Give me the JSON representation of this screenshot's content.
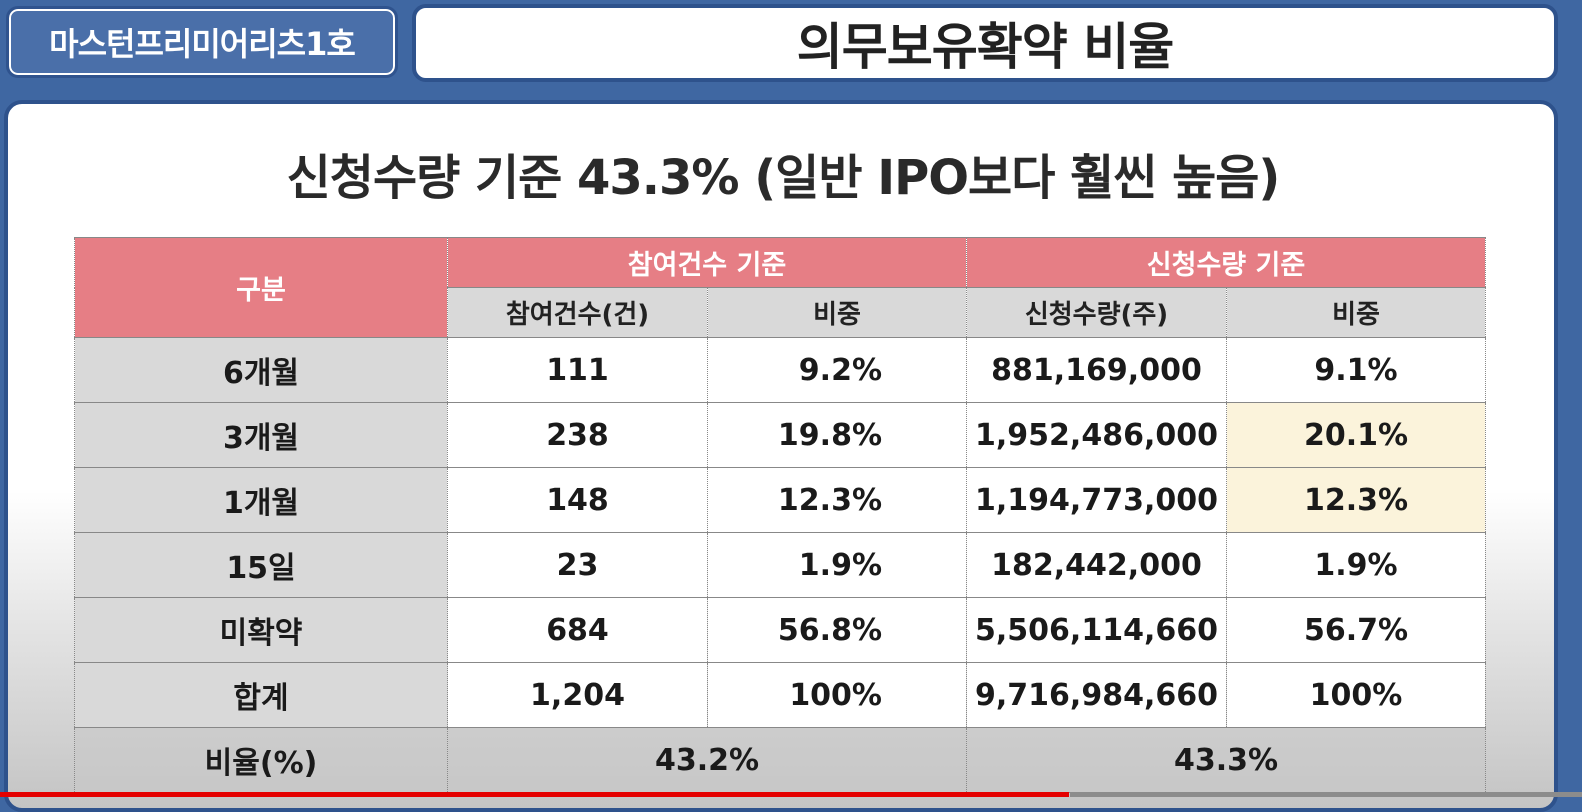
{
  "header": {
    "badge": "마스턴프리미어리츠1호",
    "title": "의무보유확약 비율"
  },
  "subtitle": "신청수량 기준 43.3% (일반 IPO보다 훨씬 높음)",
  "table": {
    "group_label": "구분",
    "group_count": "참여건수 기준",
    "group_qty": "신청수량 기준",
    "col_count": "참여건수(건)",
    "col_count_share": "비중",
    "col_qty": "신청수량(주)",
    "col_qty_share": "비중",
    "rows": [
      {
        "label": "6개월",
        "count": "111",
        "count_share": "9.2%",
        "qty": "881,169,000",
        "qty_share": "9.1%"
      },
      {
        "label": "3개월",
        "count": "238",
        "count_share": "19.8%",
        "qty": "1,952,486,000",
        "qty_share": "20.1%"
      },
      {
        "label": "1개월",
        "count": "148",
        "count_share": "12.3%",
        "qty": "1,194,773,000",
        "qty_share": "12.3%"
      },
      {
        "label": "15일",
        "count": "23",
        "count_share": "1.9%",
        "qty": "182,442,000",
        "qty_share": "1.9%"
      },
      {
        "label": "미확약",
        "count": "684",
        "count_share": "56.8%",
        "qty": "5,506,114,660",
        "qty_share": "56.7%"
      },
      {
        "label": "합계",
        "count": "1,204",
        "count_share": "100%",
        "qty": "9,716,984,660",
        "qty_share": "100%"
      }
    ],
    "ratio": {
      "label": "비율(%)",
      "count": "43.2%",
      "qty": "43.3%"
    }
  },
  "colors": {
    "accent_blue": "#2e528c",
    "header_pink": "#e67e85",
    "highlight": "#fbf3db",
    "progress_red": "#e40000"
  },
  "video": {
    "progress_fraction": 0.676
  }
}
